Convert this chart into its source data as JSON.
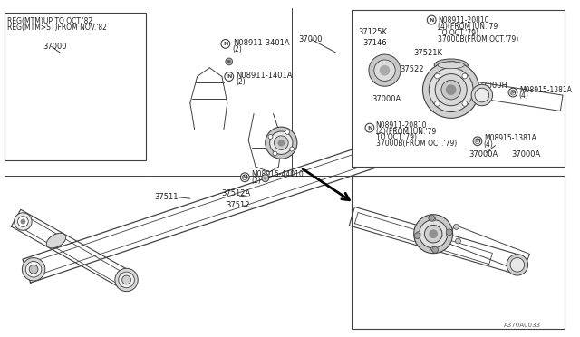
{
  "bg_color": "#ffffff",
  "line_color": "#404040",
  "text_color": "#202020",
  "part_number_ref": "A370A0033",
  "labels": {
    "reg_note1": "REG(MTM)UP TO OCT.'82",
    "reg_note2": "REG(MTM>ST)FROM NOV.'82",
    "part_37000_left": "37000",
    "part_37511": "37511",
    "part_37512": "37512",
    "part_37512A": "37512A",
    "part_37000_main": "37000",
    "nut_3401A_label": "N08911-3401A",
    "nut_3401A_qty": "(2)",
    "nut_1401A_label": "N08911-1401A",
    "nut_1401A_qty": "(2)",
    "part_37125K": "37125K",
    "part_37146": "37146",
    "part_37000A_upper": "37000A",
    "nut_20810_top_l1": "N08911-20810",
    "nut_20810_top_l2": "(4)(FROM JUN.'79",
    "nut_20810_top_l3": "TO OCT.'79)",
    "part_37000B_top": "37000B(FROM OCT.'79)",
    "washer_1381A_top": "M08915-1381A",
    "washer_1381A_top_qty": "(4)",
    "part_37000A_lower": "37000A",
    "nut_20810_bot_l1": "N08911-20810",
    "nut_20810_bot_l2": "(4)(FROM JUN.'79",
    "nut_20810_bot_l3": "TO OCT.'79)",
    "part_37000B_bot": "37000B(FROM OCT.'79)",
    "washer_1381A_bot": "M08915-1381A",
    "washer_1381A_bot_qty": "(4)",
    "part_37000A_br": "37000A",
    "part_37000H": "37000H",
    "part_37522": "37522",
    "part_37521K": "37521K",
    "washer_44010": "M08915-44010",
    "washer_44010_qty": "(2)"
  }
}
